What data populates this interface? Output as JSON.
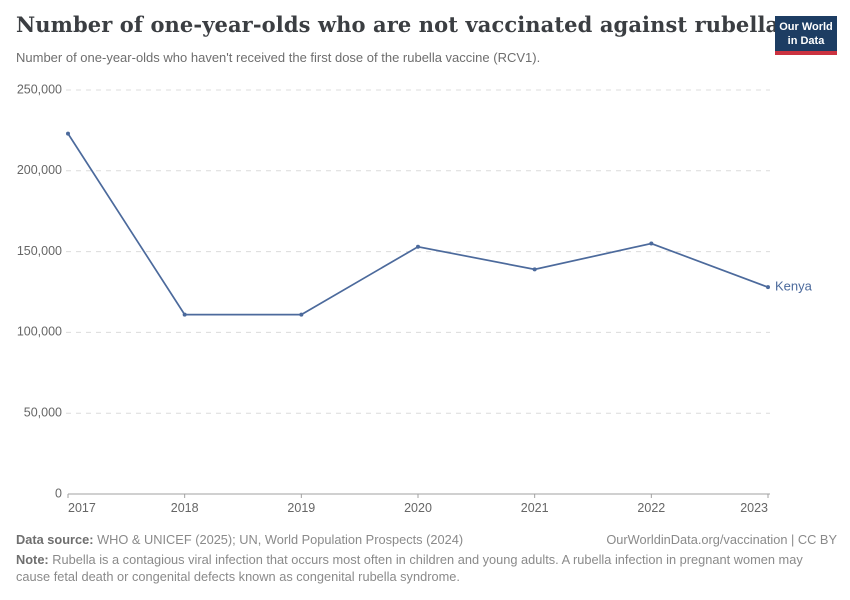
{
  "header": {
    "title": "Number of one-year-olds who are not vaccinated against rubella",
    "subtitle": "Number of one-year-olds who haven't received the first dose of the rubella vaccine (RCV1).",
    "logo": {
      "line1": "Our World",
      "line2": "in Data"
    }
  },
  "chart_data": {
    "type": "line",
    "title": "Number of one-year-olds who are not vaccinated against rubella",
    "x": [
      2017,
      2018,
      2019,
      2020,
      2021,
      2022,
      2023
    ],
    "series": [
      {
        "name": "Kenya",
        "color": "#4c6a9c",
        "values": [
          223000,
          111000,
          111000,
          153000,
          139000,
          155000,
          128000
        ]
      }
    ],
    "y_ticks": [
      0,
      50000,
      100000,
      150000,
      200000,
      250000
    ],
    "ylim": [
      0,
      250000
    ],
    "xlabel": "",
    "ylabel": "",
    "grid": "horizontal-dashed",
    "legend_position": "end-of-line"
  },
  "styles": {
    "line_color": "#4c6a9c",
    "grid_color": "#dcdcdc",
    "axis_color": "#a1a1a1",
    "tick_label_color": "#666666",
    "logo_bg": "#1d3d63",
    "logo_red": "#cb3240"
  },
  "footer": {
    "datasource_label": "Data source:",
    "datasource_text": " WHO & UNICEF (2025); UN, World Population Prospects (2024)",
    "link_text": "OurWorldinData.org/vaccination | CC BY",
    "note_label": "Note:",
    "note_text": " Rubella is a contagious viral infection that occurs most often in children and young adults. A rubella infection in pregnant women may cause fetal death or congenital defects known as congenital rubella syndrome."
  }
}
